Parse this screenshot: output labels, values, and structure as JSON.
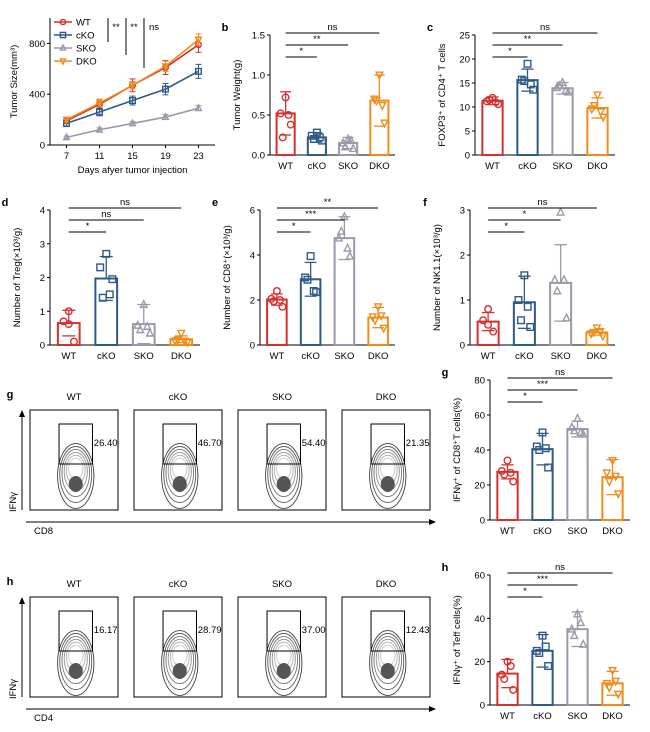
{
  "colors": {
    "WT": "#d62f2f",
    "cKO": "#2e5a87",
    "SKO": "#9b98aa",
    "DKO": "#f08c1c"
  },
  "chart_data": [
    {
      "id": "a",
      "panel_label": "a",
      "type": "line",
      "xlabel": "Days afyer tumor injection",
      "ylabel": "Tumor Size(mm³)",
      "x": [
        7,
        11,
        15,
        19,
        23
      ],
      "xlim": [
        5,
        25
      ],
      "ylim": [
        0,
        1000
      ],
      "yticks": [
        0,
        400,
        800
      ],
      "legend": [
        "WT",
        "cKO",
        "SKO",
        "DKO"
      ],
      "series": [
        {
          "name": "WT",
          "values": [
            190,
            320,
            470,
            610,
            790
          ]
        },
        {
          "name": "cKO",
          "values": [
            170,
            260,
            350,
            440,
            580
          ]
        },
        {
          "name": "SKO",
          "values": [
            60,
            120,
            170,
            220,
            290
          ]
        },
        {
          "name": "DKO",
          "values": [
            200,
            330,
            470,
            620,
            830
          ]
        }
      ],
      "significance": [
        "**",
        "**",
        "ns"
      ]
    },
    {
      "id": "b",
      "panel_label": "b",
      "type": "bar",
      "ylabel": "Tumor Weight(g)",
      "categories": [
        "WT",
        "cKO",
        "SKO",
        "DKO"
      ],
      "yticks": [
        0.0,
        0.5,
        1.0,
        1.5
      ],
      "ylim": [
        0,
        1.5
      ],
      "values": [
        0.52,
        0.22,
        0.15,
        0.68
      ],
      "errors": [
        0.27,
        0.06,
        0.07,
        0.32
      ],
      "points": [
        [
          0.72,
          0.52,
          0.38,
          0.22,
          0.5
        ],
        [
          0.28,
          0.24,
          0.18,
          0.2,
          0.22
        ],
        [
          0.2,
          0.15,
          0.08,
          0.1,
          0.18
        ],
        [
          1.0,
          0.7,
          0.4,
          0.68,
          0.62
        ]
      ],
      "significance": [
        {
          "pair": [
            "WT",
            "cKO"
          ],
          "label": "*"
        },
        {
          "pair": [
            "WT",
            "SKO"
          ],
          "label": "**"
        },
        {
          "pair": [
            "WT",
            "DKO"
          ],
          "label": "ns"
        }
      ]
    },
    {
      "id": "c",
      "panel_label": "c",
      "type": "bar",
      "ylabel": "FOXP3⁺ of CD4⁺ T cells",
      "categories": [
        "WT",
        "cKO",
        "SKO",
        "DKO"
      ],
      "yticks": [
        0,
        5,
        10,
        15,
        20,
        25
      ],
      "ylim": [
        0,
        25
      ],
      "values": [
        11.3,
        15.6,
        13.9,
        9.8
      ],
      "errors": [
        0.8,
        2.3,
        1.2,
        2.1
      ],
      "points": [
        [
          11.9,
          11.2,
          10.6,
          11.5,
          11.0
        ],
        [
          19.0,
          15.7,
          13.6,
          15.4,
          14.7
        ],
        [
          15.1,
          14.0,
          13.1,
          14.4,
          13.4
        ],
        [
          12.5,
          9.6,
          7.9,
          10.3,
          9.0
        ]
      ],
      "significance": [
        {
          "pair": [
            "WT",
            "cKO"
          ],
          "label": "*"
        },
        {
          "pair": [
            "WT",
            "SKO"
          ],
          "label": "**"
        },
        {
          "pair": [
            "WT",
            "DKO"
          ],
          "label": "ns"
        }
      ]
    },
    {
      "id": "d",
      "panel_label": "d",
      "type": "bar",
      "ylabel": "Number of Treg(×10³/g)",
      "categories": [
        "WT",
        "cKO",
        "SKO",
        "DKO"
      ],
      "yticks": [
        0,
        1,
        2,
        3,
        4
      ],
      "ylim": [
        0,
        4
      ],
      "values": [
        0.65,
        1.97,
        0.62,
        0.17
      ],
      "errors": [
        0.38,
        0.65,
        0.58,
        0.1
      ],
      "points": [
        [
          1.0,
          0.7,
          0.1,
          0.62
        ],
        [
          2.7,
          2.3,
          1.95,
          1.4,
          1.5
        ],
        [
          1.2,
          0.58,
          0.35,
          0.45,
          0.55
        ],
        [
          0.35,
          0.12,
          0.08,
          0.15,
          0.12
        ]
      ],
      "significance": [
        {
          "pair": [
            "WT",
            "cKO"
          ],
          "label": "*"
        },
        {
          "pair": [
            "WT",
            "SKO"
          ],
          "label": "ns"
        },
        {
          "pair": [
            "WT",
            "DKO"
          ],
          "label": "ns"
        }
      ]
    },
    {
      "id": "e",
      "panel_label": "e",
      "type": "bar",
      "ylabel": "Number of CD8⁺(×10³/g)",
      "categories": [
        "WT",
        "cKO",
        "SKO",
        "DKO"
      ],
      "yticks": [
        0,
        2,
        4,
        6
      ],
      "ylim": [
        0,
        6
      ],
      "values": [
        2.02,
        2.92,
        4.75,
        1.22
      ],
      "errors": [
        0.25,
        0.75,
        0.95,
        0.45
      ],
      "points": [
        [
          2.4,
          2.05,
          1.7,
          1.95,
          2.0
        ],
        [
          3.95,
          3.0,
          2.35,
          2.9,
          2.4
        ],
        [
          5.7,
          4.75,
          3.95,
          5.05,
          4.3
        ],
        [
          1.7,
          1.25,
          0.75,
          1.1,
          1.3
        ]
      ],
      "significance": [
        {
          "pair": [
            "WT",
            "cKO"
          ],
          "label": "*"
        },
        {
          "pair": [
            "WT",
            "SKO"
          ],
          "label": "***"
        },
        {
          "pair": [
            "WT",
            "DKO"
          ],
          "label": "**"
        }
      ]
    },
    {
      "id": "f",
      "panel_label": "f",
      "type": "bar",
      "ylabel": "Number of NK1.1(×10³/g)",
      "categories": [
        "WT",
        "cKO",
        "SKO",
        "DKO"
      ],
      "yticks": [
        0,
        1,
        2,
        3
      ],
      "ylim": [
        0,
        3
      ],
      "values": [
        0.52,
        0.95,
        1.38,
        0.28
      ],
      "errors": [
        0.2,
        0.58,
        0.85,
        0.06
      ],
      "points": [
        [
          0.8,
          0.55,
          0.3,
          0.45
        ],
        [
          1.55,
          1.0,
          0.4,
          0.55,
          0.85
        ],
        [
          2.95,
          1.45,
          0.6,
          1.2,
          1.45
        ],
        [
          0.38,
          0.25,
          0.2,
          0.28,
          0.3
        ]
      ],
      "significance": [
        {
          "pair": [
            "WT",
            "cKO"
          ],
          "label": "*"
        },
        {
          "pair": [
            "WT",
            "SKO"
          ],
          "label": "*"
        },
        {
          "pair": [
            "WT",
            "DKO"
          ],
          "label": "ns"
        }
      ]
    },
    {
      "id": "g",
      "panel_label": "g",
      "type": "bar",
      "ylabel": "IFNγ⁺ of CD8⁺T cells(%)",
      "categories": [
        "WT",
        "cKO",
        "SKO",
        "DKO"
      ],
      "yticks": [
        0,
        20,
        40,
        60,
        80
      ],
      "ylim": [
        0,
        80
      ],
      "values": [
        27.5,
        40.5,
        52.0,
        24.5
      ],
      "errors": [
        4.0,
        9.0,
        4.5,
        10.0
      ],
      "points": [
        [
          34.0,
          28.0,
          22.0,
          26.0,
          27.0
        ],
        [
          50.0,
          42.0,
          30.0,
          40.0,
          41.0
        ],
        [
          58.0,
          53.0,
          49.0,
          51.0,
          50.0
        ],
        [
          34.0,
          27.0,
          15.0,
          22.0,
          25.0
        ]
      ],
      "significance": [
        {
          "pair": [
            "WT",
            "cKO"
          ],
          "label": "*"
        },
        {
          "pair": [
            "WT",
            "SKO"
          ],
          "label": "***"
        },
        {
          "pair": [
            "WT",
            "DKO"
          ],
          "label": "ns"
        }
      ]
    },
    {
      "id": "h",
      "panel_label": "h",
      "type": "bar",
      "ylabel": "IFNγ⁺ of Teff cells(%)",
      "categories": [
        "WT",
        "cKO",
        "SKO",
        "DKO"
      ],
      "yticks": [
        0,
        20,
        40,
        60
      ],
      "ylim": [
        0,
        60
      ],
      "values": [
        14.5,
        25.0,
        35.0,
        10.0
      ],
      "errors": [
        6.5,
        7.5,
        8.0,
        5.5
      ],
      "points": [
        [
          20.0,
          14.0,
          7.0,
          12.0,
          18.0
        ],
        [
          32.0,
          25.0,
          18.0,
          24.0,
          27.0
        ],
        [
          42.0,
          35.0,
          28.0,
          32.0,
          38.0
        ],
        [
          16.0,
          10.0,
          5.0,
          8.0,
          11.0
        ]
      ],
      "significance": [
        {
          "pair": [
            "WT",
            "cKO"
          ],
          "label": "*"
        },
        {
          "pair": [
            "WT",
            "SKO"
          ],
          "label": "***"
        },
        {
          "pair": [
            "WT",
            "DKO"
          ],
          "label": "ns"
        }
      ]
    }
  ],
  "flow": {
    "g": {
      "panel_label": "g",
      "groups": [
        "WT",
        "cKO",
        "SKO",
        "DKO"
      ],
      "values": [
        "26.40",
        "46.70",
        "54.40",
        "21.35"
      ],
      "y_axis": "IFNγ",
      "x_axis": "CD8"
    },
    "h": {
      "panel_label": "h",
      "groups": [
        "WT",
        "cKO",
        "SKO",
        "DKO"
      ],
      "values": [
        "16.17",
        "28.79",
        "37.00",
        "12.43"
      ],
      "y_axis": "IFNγ",
      "x_axis": "CD4"
    }
  }
}
